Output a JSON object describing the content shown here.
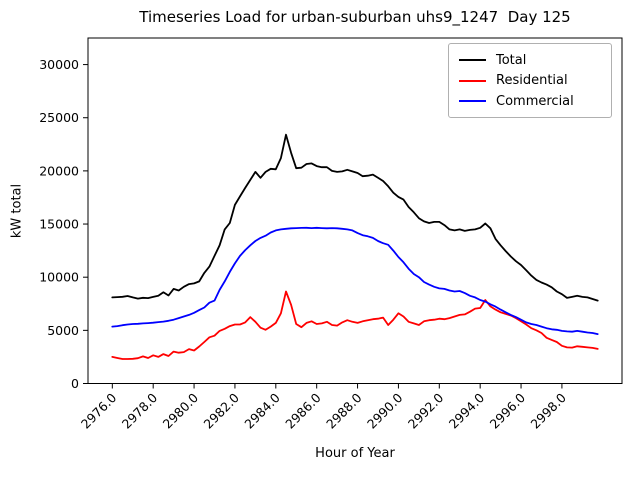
{
  "chart_data": {
    "type": "line",
    "title": "Timeseries Load for urban-suburban uhs9_1247  Day 125",
    "xlabel": "Hour of Year",
    "ylabel": "kW total",
    "grid": false,
    "legend_position": "upper right",
    "xlim": [
      2974.81,
      3000.94
    ],
    "ylim": [
      0,
      32500
    ],
    "xticks": [
      2976,
      2978,
      2980,
      2982,
      2984,
      2986,
      2988,
      2990,
      2992,
      2994,
      2996,
      2998
    ],
    "xtick_labels": [
      "2976.0",
      "2978.0",
      "2980.0",
      "2982.0",
      "2984.0",
      "2986.0",
      "2988.0",
      "2990.0",
      "2992.0",
      "2994.0",
      "2996.0",
      "2998.0"
    ],
    "yticks": [
      0,
      5000,
      10000,
      15000,
      20000,
      25000,
      30000
    ],
    "ytick_labels": [
      "0",
      "5000",
      "10000",
      "15000",
      "20000",
      "25000",
      "30000"
    ],
    "x": [
      2976.0,
      2976.25,
      2976.5,
      2976.75,
      2977.0,
      2977.25,
      2977.5,
      2977.75,
      2978.0,
      2978.25,
      2978.5,
      2978.75,
      2979.0,
      2979.25,
      2979.5,
      2979.75,
      2980.0,
      2980.25,
      2980.5,
      2980.75,
      2981.0,
      2981.25,
      2981.5,
      2981.75,
      2982.0,
      2982.25,
      2982.5,
      2982.75,
      2983.0,
      2983.25,
      2983.5,
      2983.75,
      2984.0,
      2984.25,
      2984.5,
      2984.75,
      2985.0,
      2985.25,
      2985.5,
      2985.75,
      2986.0,
      2986.25,
      2986.5,
      2986.75,
      2987.0,
      2987.25,
      2987.5,
      2987.75,
      2988.0,
      2988.25,
      2988.5,
      2988.75,
      2989.0,
      2989.25,
      2989.5,
      2989.75,
      2990.0,
      2990.25,
      2990.5,
      2990.75,
      2991.0,
      2991.25,
      2991.5,
      2991.75,
      2992.0,
      2992.25,
      2992.5,
      2992.75,
      2993.0,
      2993.25,
      2993.5,
      2993.75,
      2994.0,
      2994.25,
      2994.5,
      2994.75,
      2995.0,
      2995.25,
      2995.5,
      2995.75,
      2996.0,
      2996.25,
      2996.5,
      2996.75,
      2997.0,
      2997.25,
      2997.5,
      2997.75,
      2998.0,
      2998.25,
      2998.5,
      2998.75,
      2999.0,
      2999.25,
      2999.5,
      2999.75
    ],
    "series": [
      {
        "name": "Total",
        "color": "#000000",
        "values": [
          8100,
          8130,
          8160,
          8230,
          8100,
          7990,
          8060,
          8030,
          8150,
          8250,
          8580,
          8280,
          8900,
          8750,
          9100,
          9350,
          9420,
          9600,
          10400,
          11000,
          12000,
          13000,
          14500,
          15100,
          16800,
          17600,
          18400,
          19150,
          19900,
          19350,
          19900,
          20200,
          20150,
          21200,
          23400,
          21700,
          20250,
          20300,
          20650,
          20700,
          20450,
          20350,
          20350,
          20000,
          19900,
          19950,
          20100,
          19950,
          19800,
          19500,
          19550,
          19650,
          19350,
          19050,
          18550,
          17950,
          17550,
          17300,
          16600,
          16100,
          15550,
          15250,
          15100,
          15200,
          15200,
          14900,
          14500,
          14400,
          14500,
          14350,
          14450,
          14500,
          14650,
          15050,
          14600,
          13600,
          13000,
          12450,
          11950,
          11500,
          11150,
          10650,
          10150,
          9750,
          9500,
          9300,
          9050,
          8650,
          8400,
          8050,
          8150,
          8250,
          8150,
          8100,
          7950,
          7800
        ]
      },
      {
        "name": "Residential",
        "color": "#ff0000",
        "values": [
          2500,
          2400,
          2300,
          2300,
          2320,
          2380,
          2550,
          2400,
          2650,
          2500,
          2770,
          2590,
          3000,
          2900,
          2950,
          3240,
          3100,
          3480,
          3900,
          4350,
          4500,
          4950,
          5150,
          5400,
          5550,
          5550,
          5750,
          6250,
          5800,
          5250,
          5050,
          5350,
          5700,
          6600,
          8650,
          7400,
          5600,
          5300,
          5700,
          5850,
          5600,
          5650,
          5800,
          5500,
          5450,
          5750,
          5950,
          5800,
          5700,
          5850,
          5950,
          6050,
          6100,
          6200,
          5500,
          6000,
          6600,
          6300,
          5800,
          5650,
          5500,
          5850,
          5950,
          6000,
          6100,
          6050,
          6150,
          6300,
          6450,
          6500,
          6750,
          7050,
          7100,
          7850,
          7250,
          6950,
          6700,
          6550,
          6400,
          6150,
          5850,
          5550,
          5200,
          5000,
          4750,
          4300,
          4100,
          3900,
          3550,
          3400,
          3380,
          3500,
          3450,
          3400,
          3350,
          3250
        ]
      },
      {
        "name": "Commercial",
        "color": "#0000ff",
        "values": [
          5350,
          5400,
          5480,
          5550,
          5600,
          5620,
          5650,
          5680,
          5720,
          5780,
          5820,
          5900,
          6000,
          6150,
          6300,
          6450,
          6650,
          6900,
          7150,
          7600,
          7800,
          8800,
          9600,
          10500,
          11300,
          12000,
          12550,
          13000,
          13400,
          13700,
          13900,
          14200,
          14400,
          14500,
          14550,
          14600,
          14620,
          14640,
          14650,
          14620,
          14650,
          14620,
          14600,
          14620,
          14600,
          14550,
          14500,
          14400,
          14150,
          13950,
          13850,
          13700,
          13400,
          13200,
          13050,
          12500,
          11900,
          11400,
          10800,
          10300,
          10000,
          9550,
          9300,
          9100,
          8950,
          8900,
          8750,
          8650,
          8700,
          8500,
          8250,
          8100,
          7850,
          7700,
          7450,
          7230,
          6950,
          6700,
          6450,
          6250,
          6000,
          5750,
          5600,
          5500,
          5350,
          5200,
          5100,
          5050,
          4950,
          4900,
          4870,
          4950,
          4870,
          4800,
          4750,
          4650
        ]
      }
    ]
  }
}
